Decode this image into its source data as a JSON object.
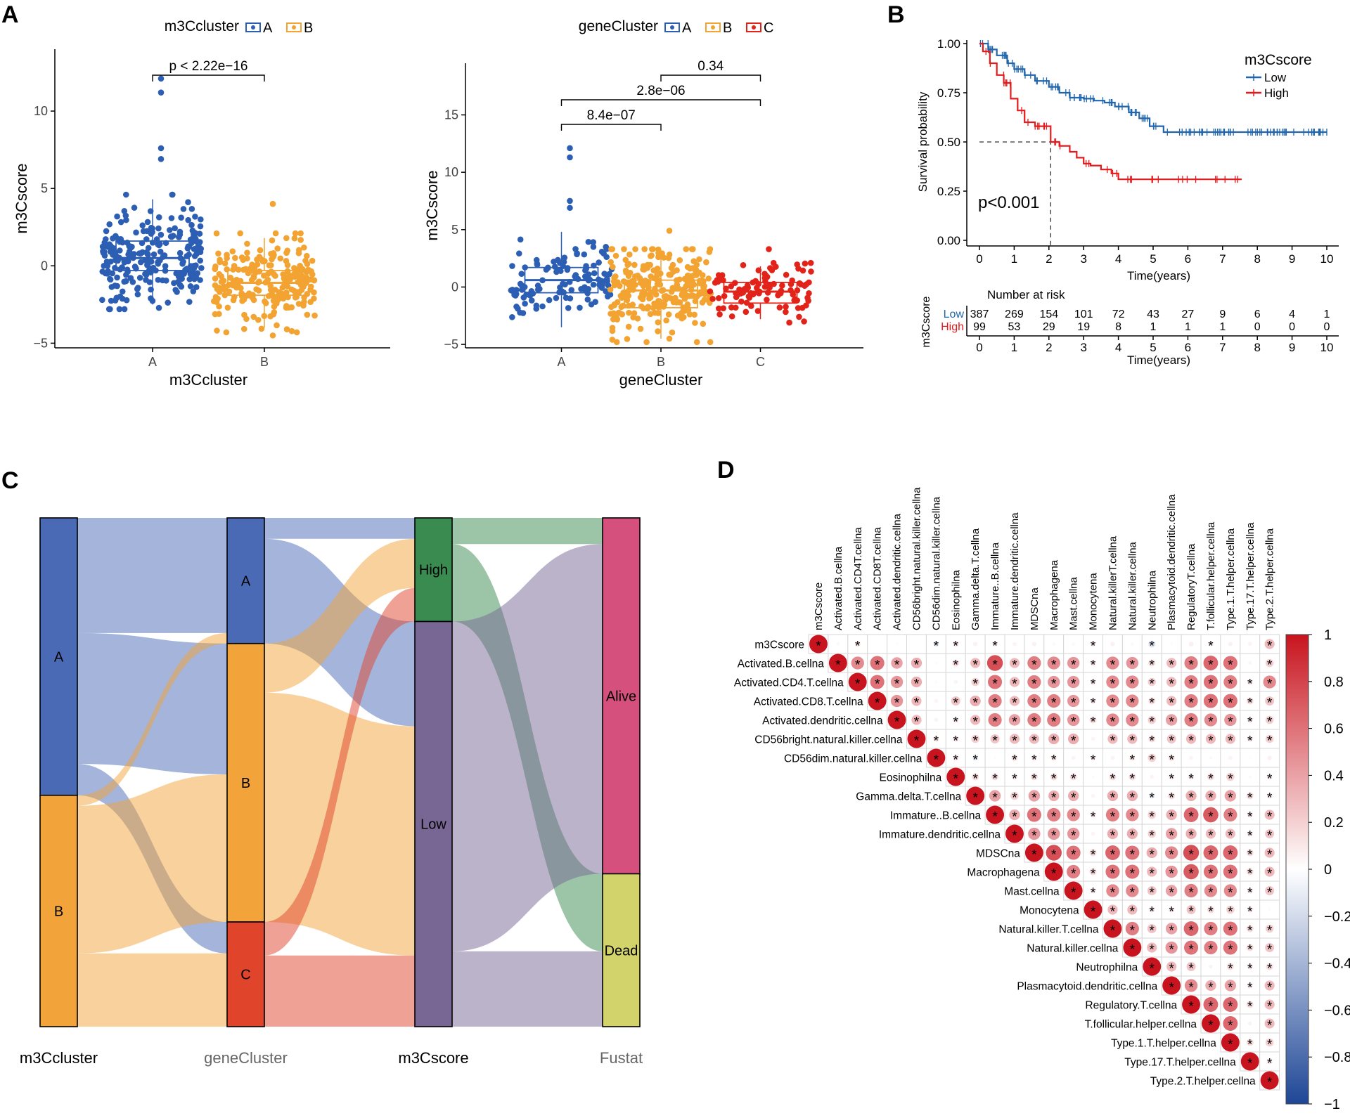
{
  "panels": {
    "a": "A",
    "b": "B",
    "c": "C",
    "d": "D"
  },
  "colors": {
    "blue": "#2c5fb3",
    "orange": "#f2a331",
    "red": "#e2231a",
    "low": "#2166ac",
    "high": "#e41a1c"
  },
  "chart_data": [
    {
      "type": "box",
      "id": "A1",
      "legend_title": "m3Ccluster",
      "categories": [
        "A",
        "B"
      ],
      "xlabel": "m3Ccluster",
      "ylabel": "m3Cscore",
      "ylim": [
        -5.3,
        14
      ],
      "yticks": [
        "−5",
        "0",
        "5",
        "10"
      ],
      "ytick_values": [
        -5,
        0,
        5,
        10
      ],
      "boxes": [
        {
          "name": "A",
          "q1": -0.3,
          "median": 0.5,
          "q3": 1.6,
          "min": -2.5,
          "max": 4.3
        },
        {
          "name": "B",
          "q1": -1.9,
          "median": -1.1,
          "q3": -0.3,
          "min": -4.0,
          "max": 1.8
        }
      ],
      "comparisons": [
        {
          "from": "A",
          "to": "B",
          "label": "p < 2.22e−16"
        }
      ]
    },
    {
      "type": "box",
      "id": "A2",
      "legend_title": "geneCluster",
      "categories": [
        "A",
        "B",
        "C"
      ],
      "xlabel": "geneCluster",
      "ylabel": "m3Cscore",
      "ylim": [
        -5.3,
        19.5
      ],
      "yticks": [
        "−5",
        "0",
        "5",
        "10",
        "15"
      ],
      "ytick_values": [
        -5,
        0,
        5,
        10,
        15
      ],
      "boxes": [
        {
          "name": "A",
          "q1": -0.5,
          "median": 0.6,
          "q3": 1.7,
          "min": -3.5,
          "max": 4.8
        },
        {
          "name": "B",
          "q1": -1.8,
          "median": -0.3,
          "q3": 0.6,
          "min": -4.5,
          "max": 3.0
        },
        {
          "name": "C",
          "q1": -1.4,
          "median": -0.4,
          "q3": 0.4,
          "min": -2.8,
          "max": 1.8
        }
      ],
      "comparisons": [
        {
          "from": "A",
          "to": "B",
          "label": "8.4e−07"
        },
        {
          "from": "A",
          "to": "C",
          "label": "2.8e−06"
        },
        {
          "from": "B",
          "to": "C",
          "label": "0.34"
        }
      ]
    },
    {
      "type": "line",
      "id": "B",
      "legend_title": "m3Cscore",
      "xlabel": "Time(years)",
      "ylabel": "Survival probability",
      "xlim": [
        0,
        10
      ],
      "ylim": [
        0,
        1
      ],
      "xticks": [
        "0",
        "1",
        "2",
        "3",
        "4",
        "5",
        "6",
        "7",
        "8",
        "9",
        "10"
      ],
      "yticks": [
        "0.00",
        "0.25",
        "0.50",
        "0.75",
        "1.00"
      ],
      "pvalue": "p<0.001",
      "median_survival_high": 2.05,
      "series": [
        {
          "name": "Low",
          "x": [
            0,
            0.25,
            0.5,
            0.8,
            1.0,
            1.3,
            1.6,
            2.0,
            2.3,
            2.6,
            3.0,
            3.3,
            3.6,
            3.9,
            4.3,
            4.6,
            4.9,
            5.3,
            6.0,
            7.0,
            8.0,
            9.0,
            10.0
          ],
          "y": [
            1.0,
            0.97,
            0.94,
            0.9,
            0.87,
            0.84,
            0.81,
            0.78,
            0.75,
            0.725,
            0.72,
            0.71,
            0.7,
            0.68,
            0.65,
            0.62,
            0.58,
            0.55,
            0.55,
            0.55,
            0.55,
            0.55,
            0.55
          ]
        },
        {
          "name": "High",
          "x": [
            0,
            0.1,
            0.3,
            0.5,
            0.7,
            0.9,
            1.1,
            1.3,
            1.6,
            2.05,
            2.3,
            2.6,
            2.8,
            3.0,
            3.2,
            3.5,
            3.8,
            4.0,
            4.2,
            5.0,
            6.0,
            7.0,
            7.55
          ],
          "y": [
            1.0,
            0.96,
            0.9,
            0.84,
            0.8,
            0.72,
            0.66,
            0.6,
            0.58,
            0.5,
            0.48,
            0.45,
            0.42,
            0.39,
            0.38,
            0.36,
            0.34,
            0.31,
            0.31,
            0.31,
            0.31,
            0.31,
            0.31
          ]
        }
      ],
      "risk_table": {
        "title": "Number at risk",
        "ylabel": "m3Cscore",
        "rows": [
          {
            "name": "Low",
            "values": [
              "387",
              "269",
              "154",
              "101",
              "72",
              "43",
              "27",
              "9",
              "6",
              "4",
              "1"
            ]
          },
          {
            "name": "High",
            "values": [
              "99",
              "53",
              "29",
              "19",
              "8",
              "1",
              "1",
              "1",
              "0",
              "0",
              "0"
            ]
          }
        ]
      }
    },
    {
      "type": "sankey",
      "id": "C",
      "axes": [
        "m3Ccluster",
        "geneCluster",
        "m3Cscore",
        "Fustat"
      ],
      "nodes": [
        {
          "axis": 0,
          "name": "A",
          "value": 265,
          "color": "#4a6ab5"
        },
        {
          "axis": 0,
          "name": "B",
          "value": 221,
          "color": "#f2a33a"
        },
        {
          "axis": 1,
          "name": "A",
          "value": 120,
          "color": "#4a6ab5"
        },
        {
          "axis": 1,
          "name": "B",
          "value": 266,
          "color": "#f2a33a"
        },
        {
          "axis": 1,
          "name": "C",
          "value": 100,
          "color": "#e0442b"
        },
        {
          "axis": 2,
          "name": "High",
          "value": 99,
          "color": "#3a8b4f"
        },
        {
          "axis": 2,
          "name": "Low",
          "value": 387,
          "color": "#786794"
        },
        {
          "axis": 3,
          "name": "Alive",
          "value": 340,
          "color": "#d5507d"
        },
        {
          "axis": 3,
          "name": "Dead",
          "value": 146,
          "color": "#d3d36b"
        }
      ],
      "links": [
        {
          "source": "0:A",
          "target": "1:A",
          "value": 110
        },
        {
          "source": "0:A",
          "target": "1:B",
          "value": 125
        },
        {
          "source": "0:A",
          "target": "1:C",
          "value": 30
        },
        {
          "source": "0:B",
          "target": "1:A",
          "value": 10
        },
        {
          "source": "0:B",
          "target": "1:B",
          "value": 141
        },
        {
          "source": "0:B",
          "target": "1:C",
          "value": 70
        },
        {
          "source": "1:A",
          "target": "2:High",
          "value": 20
        },
        {
          "source": "1:A",
          "target": "2:Low",
          "value": 100
        },
        {
          "source": "1:B",
          "target": "2:High",
          "value": 47
        },
        {
          "source": "1:B",
          "target": "2:Low",
          "value": 219
        },
        {
          "source": "1:C",
          "target": "2:High",
          "value": 32
        },
        {
          "source": "1:C",
          "target": "2:Low",
          "value": 68
        },
        {
          "source": "2:High",
          "target": "3:Alive",
          "value": 25
        },
        {
          "source": "2:High",
          "target": "3:Dead",
          "value": 74
        },
        {
          "source": "2:Low",
          "target": "3:Alive",
          "value": 315
        },
        {
          "source": "2:Low",
          "target": "3:Dead",
          "value": 72
        }
      ]
    },
    {
      "type": "heatmap",
      "id": "D",
      "variables": [
        "m3Cscore",
        "Activated.B.cellna",
        "Activated.CD4T.cellna",
        "Activated.CD8T.cellna",
        "Activated.dendritic.cellna",
        "CD56bright.natural.killer.cellna",
        "CD56dim.natural.killer.cellna",
        "Eosinophilna",
        "Gamma.delta.T.cellna",
        "Immature..B.cellna",
        "Immature.dendritic.cellna",
        "MDSCna",
        "Macrophagena",
        "Mast.cellna",
        "Monocytena",
        "Natural.killerT.cellna",
        "Natural.killer.cellna",
        "Neutrophilna",
        "Plasmacytoid.dendritic.cellna",
        "RegulatoryT.cellna",
        "T.follicular.helper.cellna",
        "Type.1.T.helper.cellna",
        "Type.17.T.helper.cellna",
        "Type.2.T.helper.cellna"
      ],
      "row_labels": [
        "m3Cscore",
        "Activated.B.cellna",
        "Activated.CD4.T.cellna",
        "Activated.CD8.T.cellna",
        "Activated.dendritic.cellna",
        "CD56bright.natural.killer.cellna",
        "CD56dim.natural.killer.cellna",
        "Eosinophilna",
        "Gamma.delta.T.cellna",
        "Immature..B.cellna",
        "Immature.dendritic.cellna",
        "MDSCna",
        "Macrophagena",
        "Mast.cellna",
        "Monocytena",
        "Natural.killer.T.cellna",
        "Natural.killer.cellna",
        "Neutrophilna",
        "Plasmacytoid.dendritic.cellna",
        "Regulatory.T.cellna",
        "T.follicular.helper.cellna",
        "Type.1.T.helper.cellna",
        "Type.17.T.helper.cellna",
        "Type.2.T.helper.cellna"
      ],
      "matrix": [
        [
          1,
          0.03,
          0.1,
          0,
          0.02,
          0,
          -0.1,
          0.1,
          0.06,
          0.08,
          0.05,
          0.06,
          0.03,
          0.03,
          0.08,
          0.06,
          0.03,
          -0.15,
          0.02,
          0.07,
          0.08,
          0.06,
          0.05,
          0.3
        ],
        [
          0.03,
          1,
          0.5,
          0.6,
          0.4,
          0.35,
          0.02,
          0.15,
          0.3,
          0.75,
          0.3,
          0.55,
          0.5,
          0.45,
          0.1,
          0.5,
          0.45,
          0.15,
          0.3,
          0.55,
          0.65,
          0.6,
          0.04,
          0.2
        ],
        [
          0.1,
          0.5,
          1,
          0.6,
          0.45,
          0.35,
          0.02,
          0.05,
          0.2,
          0.6,
          0.3,
          0.55,
          0.45,
          0.45,
          0.1,
          0.5,
          0.5,
          0.2,
          0.3,
          0.55,
          0.6,
          0.55,
          0.1,
          0.5
        ],
        [
          0,
          0.6,
          0.6,
          1,
          0.45,
          0.3,
          0.05,
          0.25,
          0.35,
          0.55,
          0.3,
          0.55,
          0.55,
          0.45,
          0.1,
          0.5,
          0.5,
          0.15,
          0.3,
          0.55,
          0.6,
          0.6,
          0.15,
          0.25
        ],
        [
          0.02,
          0.4,
          0.45,
          0.45,
          1,
          0.3,
          0.05,
          0.1,
          0.3,
          0.55,
          0.4,
          0.55,
          0.55,
          0.45,
          0.15,
          0.5,
          0.5,
          0.2,
          0.4,
          0.55,
          0.5,
          0.45,
          0.1,
          0.2
        ],
        [
          0,
          0.35,
          0.35,
          0.3,
          0.3,
          1,
          0.1,
          0.1,
          0.2,
          0.25,
          0.3,
          0.3,
          0.35,
          0.35,
          0.05,
          0.3,
          0.3,
          0.15,
          0.25,
          0.3,
          0.3,
          0.3,
          0.1,
          0.2
        ],
        [
          -0.1,
          0.02,
          0.02,
          0.05,
          0.05,
          0.1,
          1,
          0.1,
          -0.1,
          0.02,
          0.12,
          0.1,
          0.1,
          0.05,
          0.08,
          0.05,
          0.1,
          0.2,
          0.12,
          0.05,
          0.03,
          0.05,
          0.02,
          0.06
        ],
        [
          0.1,
          0.15,
          0.05,
          0.25,
          0.1,
          0.1,
          0.1,
          1,
          0.15,
          0.15,
          0.1,
          0.15,
          0.15,
          0.15,
          0.02,
          0.15,
          0.15,
          0.05,
          0.1,
          0.1,
          0.15,
          0.2,
          0.03,
          0.1
        ],
        [
          0.06,
          0.3,
          0.2,
          0.35,
          0.3,
          0.2,
          -0.1,
          0.15,
          1,
          0.4,
          0.2,
          0.4,
          0.35,
          0.35,
          0.05,
          0.35,
          0.35,
          -0.1,
          0.15,
          0.35,
          0.35,
          0.4,
          0.15,
          0.1
        ],
        [
          0.08,
          0.75,
          0.6,
          0.55,
          0.55,
          0.25,
          0.02,
          0.15,
          0.4,
          1,
          0.35,
          0.6,
          0.55,
          0.5,
          0.1,
          0.55,
          0.5,
          0.2,
          0.35,
          0.65,
          0.7,
          0.55,
          0.1,
          0.3
        ],
        [
          0.05,
          0.3,
          0.3,
          0.3,
          0.4,
          0.3,
          0.12,
          0.1,
          0.2,
          0.35,
          1,
          0.45,
          0.45,
          0.45,
          0.05,
          0.35,
          0.35,
          0.2,
          0.4,
          0.35,
          0.3,
          0.3,
          0.1,
          0.25
        ],
        [
          0.06,
          0.55,
          0.55,
          0.55,
          0.55,
          0.3,
          0.1,
          0.15,
          0.4,
          0.6,
          0.45,
          1,
          0.75,
          0.6,
          0.15,
          0.65,
          0.6,
          0.35,
          0.5,
          0.75,
          0.65,
          0.65,
          0.15,
          0.3
        ],
        [
          0.03,
          0.5,
          0.45,
          0.55,
          0.55,
          0.35,
          0.1,
          0.15,
          0.35,
          0.55,
          0.45,
          0.75,
          1,
          0.55,
          0.15,
          0.6,
          0.6,
          0.3,
          0.45,
          0.7,
          0.6,
          0.6,
          0.15,
          0.3
        ],
        [
          0.03,
          0.45,
          0.45,
          0.45,
          0.45,
          0.35,
          0.05,
          0.15,
          0.35,
          0.5,
          0.45,
          0.6,
          0.55,
          1,
          0.1,
          0.5,
          0.5,
          0.25,
          0.4,
          0.55,
          0.5,
          0.5,
          0.1,
          0.25
        ],
        [
          0.08,
          0.1,
          0.1,
          0.1,
          0.15,
          0.05,
          0.08,
          0.02,
          0.05,
          0.1,
          0.05,
          0.15,
          0.15,
          0.1,
          1,
          0.3,
          0.3,
          0.1,
          0.1,
          0.25,
          0.15,
          0.2,
          0.1,
          0.02
        ],
        [
          0.06,
          0.5,
          0.5,
          0.5,
          0.5,
          0.3,
          0.05,
          0.15,
          0.35,
          0.55,
          0.35,
          0.65,
          0.6,
          0.5,
          0.3,
          1,
          0.55,
          0.25,
          0.4,
          0.65,
          0.55,
          0.6,
          0.15,
          0.2
        ],
        [
          0.03,
          0.45,
          0.5,
          0.5,
          0.5,
          0.3,
          0.1,
          0.15,
          0.35,
          0.5,
          0.35,
          0.6,
          0.6,
          0.5,
          0.3,
          0.55,
          1,
          0.3,
          0.45,
          0.6,
          0.55,
          0.6,
          0.15,
          0.25
        ],
        [
          -0.15,
          0.15,
          0.2,
          0.15,
          0.2,
          0.15,
          0.2,
          0.05,
          -0.1,
          0.2,
          0.2,
          0.35,
          0.3,
          0.25,
          0.1,
          0.25,
          0.3,
          1,
          0.3,
          0.25,
          0.05,
          0.15,
          0.1,
          0.15
        ],
        [
          0.02,
          0.3,
          0.3,
          0.3,
          0.4,
          0.25,
          0.12,
          0.1,
          0.15,
          0.35,
          0.4,
          0.5,
          0.45,
          0.4,
          0.1,
          0.4,
          0.45,
          0.3,
          1,
          0.5,
          0.35,
          0.4,
          0.1,
          0.3
        ],
        [
          0.07,
          0.55,
          0.55,
          0.55,
          0.55,
          0.3,
          0.05,
          0.1,
          0.35,
          0.65,
          0.35,
          0.75,
          0.7,
          0.55,
          0.25,
          0.65,
          0.6,
          0.25,
          0.5,
          1,
          0.65,
          0.65,
          0.15,
          0.3
        ],
        [
          0.08,
          0.65,
          0.6,
          0.6,
          0.5,
          0.3,
          0.03,
          0.15,
          0.35,
          0.7,
          0.3,
          0.65,
          0.6,
          0.5,
          0.15,
          0.55,
          0.55,
          0.05,
          0.35,
          0.65,
          1,
          0.65,
          0.05,
          0.3
        ],
        [
          0.06,
          0.6,
          0.55,
          0.6,
          0.45,
          0.3,
          0.05,
          0.2,
          0.4,
          0.55,
          0.3,
          0.65,
          0.6,
          0.5,
          0.2,
          0.6,
          0.6,
          0.15,
          0.4,
          0.65,
          0.65,
          1,
          0.15,
          0.2
        ],
        [
          0.05,
          0.04,
          0.1,
          0.15,
          0.1,
          0.1,
          0.02,
          0.03,
          0.15,
          0.1,
          0.1,
          0.15,
          0.15,
          0.1,
          0.1,
          0.15,
          0.15,
          0.1,
          0.1,
          0.15,
          0.05,
          0.15,
          1,
          0.1
        ],
        [
          0.3,
          0.2,
          0.5,
          0.25,
          0.2,
          0.2,
          0.06,
          0.1,
          0.1,
          0.3,
          0.25,
          0.3,
          0.3,
          0.25,
          0.02,
          0.2,
          0.25,
          0.15,
          0.3,
          0.3,
          0.3,
          0.2,
          0.1,
          1
        ]
      ],
      "significance_marker": "*",
      "colorbar_ticks": [
        "1",
        "0.8",
        "0.6",
        "0.4",
        "0.2",
        "0",
        "−0.2",
        "−0.4",
        "−0.6",
        "−0.8",
        "−1"
      ],
      "colorbar_values": [
        1,
        0.8,
        0.6,
        0.4,
        0.2,
        0,
        -0.2,
        -0.4,
        -0.6,
        -0.8,
        -1
      ]
    }
  ]
}
